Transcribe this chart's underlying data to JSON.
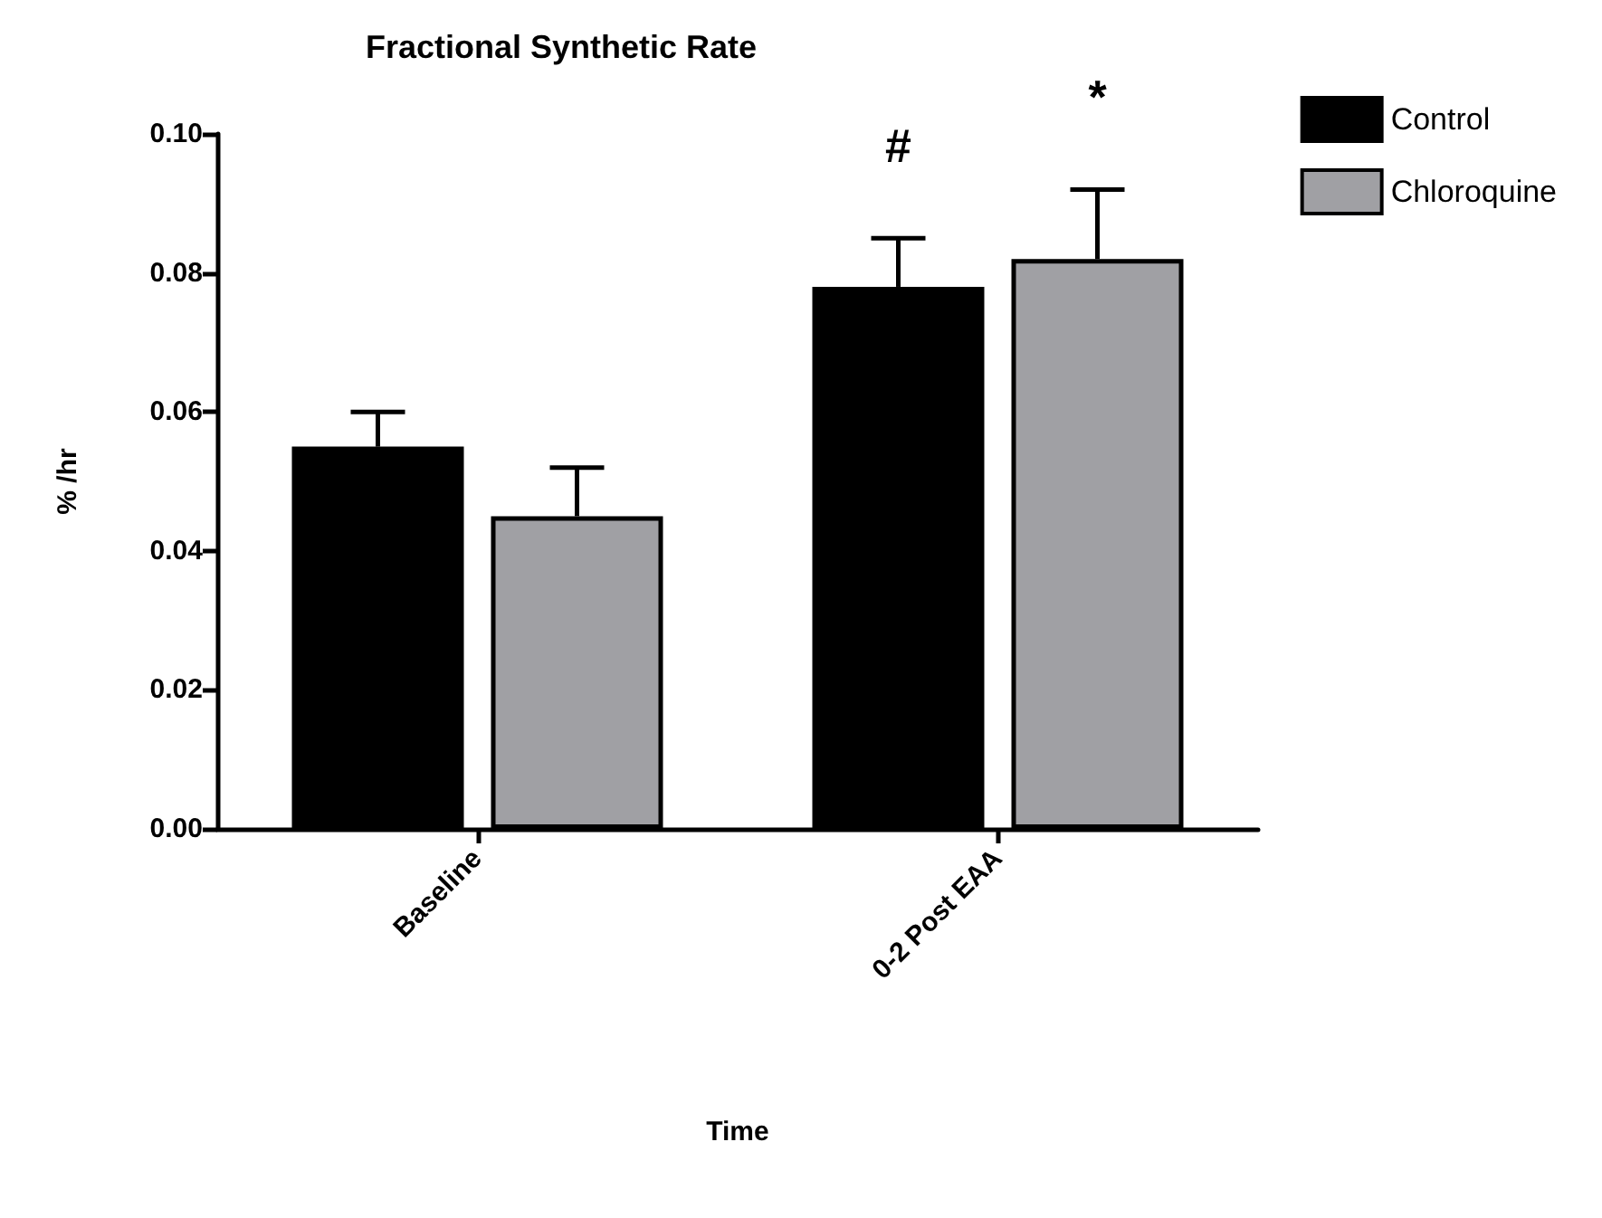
{
  "chart_data": {
    "type": "bar",
    "title": "Fractional Synthetic Rate",
    "xlabel": "Time",
    "ylabel": "% /hr",
    "categories": [
      "Baseline",
      "0-2 Post EAA"
    ],
    "series": [
      {
        "name": "Control",
        "color": "#000000",
        "values": [
          0.055,
          0.078
        ],
        "errors": [
          [
            0.055,
            0.06
          ],
          [
            0.078,
            0.085
          ]
        ]
      },
      {
        "name": "Chloroquine",
        "color": "#a0a0a4",
        "values": [
          0.045,
          0.082
        ],
        "errors": [
          [
            0.045,
            0.052
          ],
          [
            0.082,
            0.092
          ]
        ]
      }
    ],
    "ylim": [
      0,
      0.1
    ],
    "yticks": [
      {
        "value": 0,
        "label": "0.00"
      },
      {
        "value": 0.02,
        "label": "0.02"
      },
      {
        "value": 0.04,
        "label": "0.04"
      },
      {
        "value": 0.06,
        "label": "0.06"
      },
      {
        "value": 0.08,
        "label": "0.08"
      },
      {
        "value": 0.1,
        "label": "0.10"
      }
    ],
    "annotations": [
      "#",
      "*"
    ],
    "grid": false,
    "legend": "top right"
  }
}
